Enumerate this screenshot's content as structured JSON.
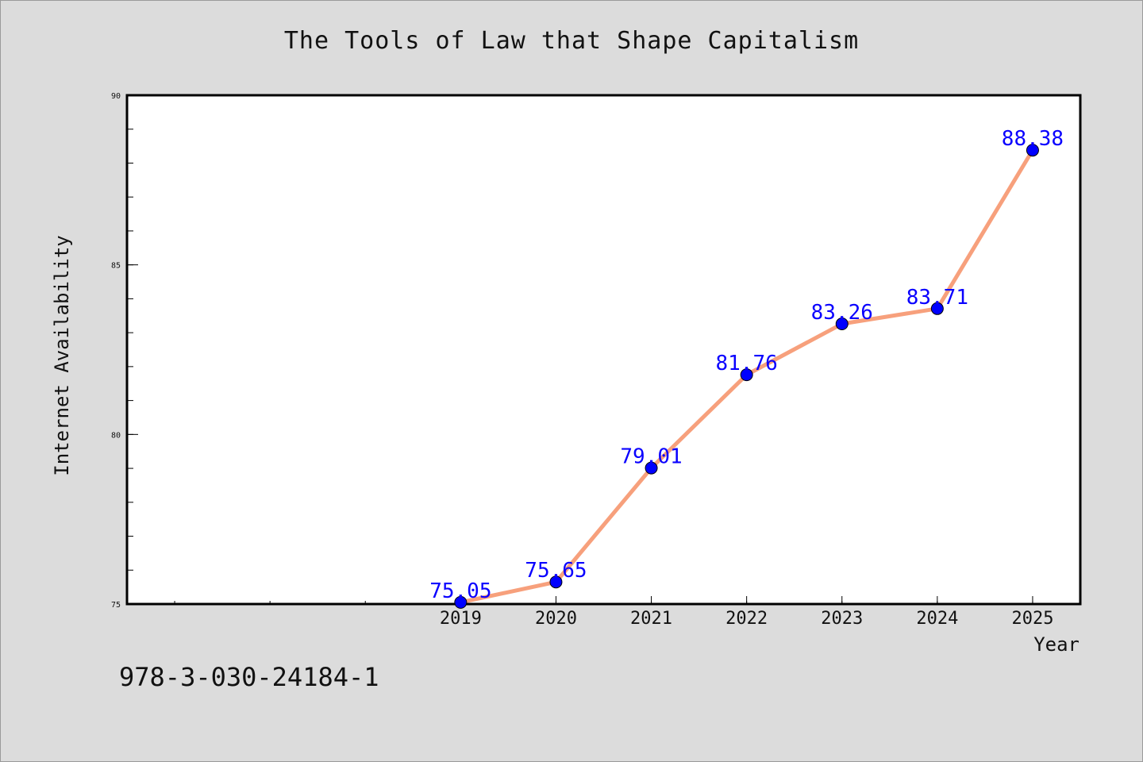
{
  "chart_data": {
    "type": "line",
    "title": "The Tools of Law that Shape Capitalism",
    "xlabel": "Year",
    "ylabel": "Internet Availability",
    "x": [
      2019,
      2020,
      2021,
      2022,
      2023,
      2024,
      2025
    ],
    "x_tick_labels": [
      "2019",
      "2020",
      "2021",
      "2022",
      "2023",
      "2024",
      "2025"
    ],
    "xlim": [
      2015.5,
      2025.5
    ],
    "series": [
      {
        "values": [
          75.05,
          75.65,
          79.01,
          81.76,
          83.26,
          83.71,
          88.38
        ],
        "labels": [
          "75.05",
          "75.65",
          "79.01",
          "81.76",
          "83.26",
          "83.71",
          "88.38"
        ],
        "line_color": "#f7a07c",
        "marker_color": "#0000ff"
      }
    ],
    "ylim": [
      75,
      90
    ],
    "y_ticks": [
      75,
      80,
      85,
      90
    ],
    "y_tick_labels": [
      "75",
      "80",
      "85",
      "90"
    ],
    "grid": false,
    "legend": "none"
  },
  "annotation": {
    "isbn": "978-3-030-24184-1"
  },
  "colors": {
    "background": "#dcdcdc",
    "plot_area": "#ffffff"
  }
}
